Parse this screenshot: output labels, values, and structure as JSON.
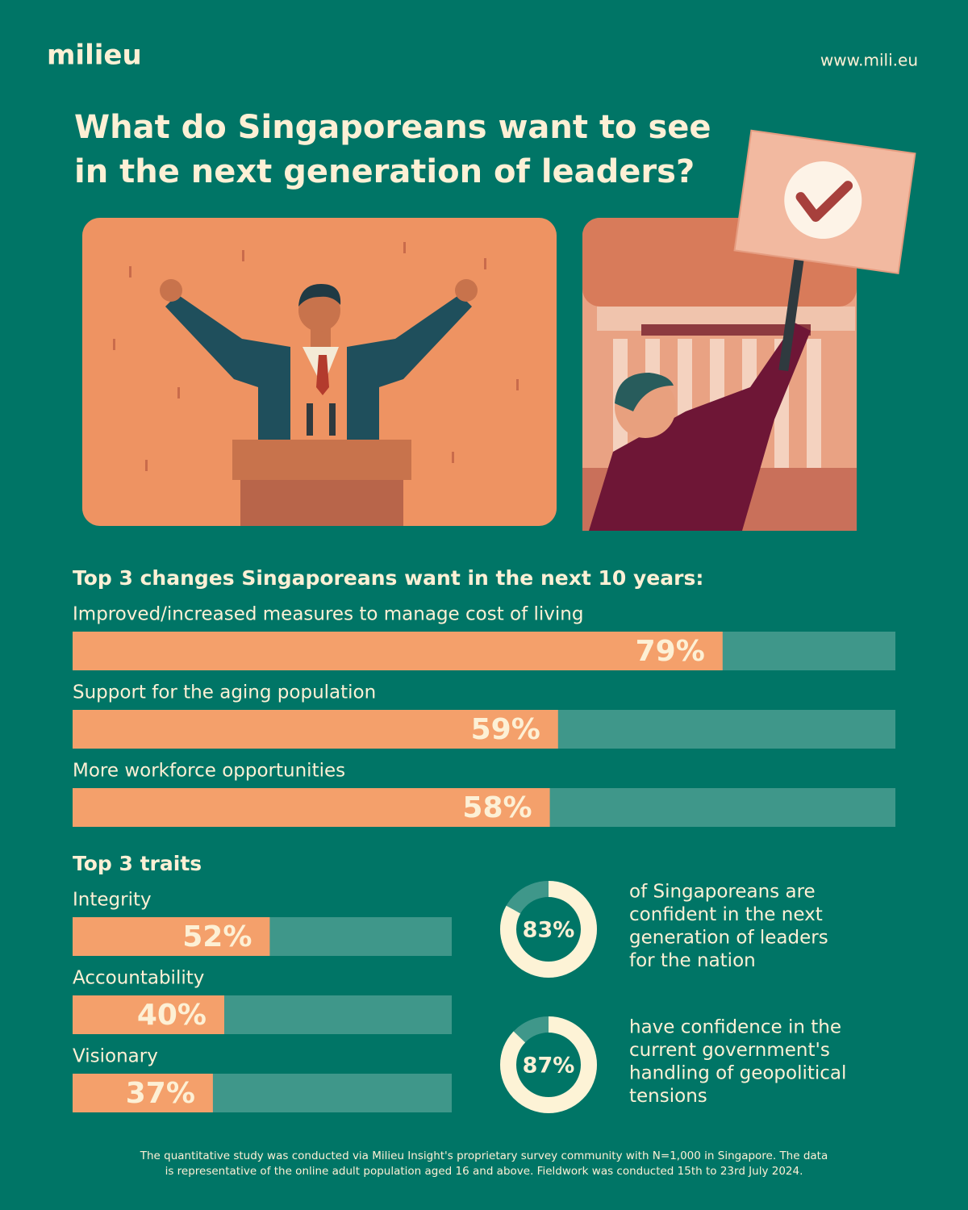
{
  "header": {
    "logo": "milieu",
    "url": "www.mili.eu"
  },
  "title": [
    "What do Singaporeans want to see",
    "in the next generation of leaders?"
  ],
  "chart_data": [
    {
      "type": "bar",
      "title": "Top 3 changes Singaporeans want in the next 10 years:",
      "categories": [
        "Improved/increased measures to manage cost of living",
        "Support for the aging population",
        "More workforce opportunities"
      ],
      "values": [
        79,
        59,
        58
      ],
      "value_labels": [
        "79%",
        "59%",
        "58%"
      ],
      "xlim": [
        0,
        100
      ],
      "color": "#f4a06b",
      "track_color": "#3f978a"
    },
    {
      "type": "bar",
      "title": "Top 3 traits",
      "categories": [
        "Integrity",
        "Accountability",
        "Visionary"
      ],
      "values": [
        52,
        40,
        37
      ],
      "value_labels": [
        "52%",
        "40%",
        "37%"
      ],
      "xlim": [
        0,
        100
      ],
      "color": "#f4a06b",
      "track_color": "#3f978a"
    },
    {
      "type": "donut",
      "values": [
        83
      ],
      "value_labels": [
        "83%"
      ],
      "total": 100,
      "caption": [
        "of Singaporeans are",
        "confident in the next",
        "generation of leaders",
        "for the nation"
      ],
      "color": "#fdf3d6",
      "track_color": "#3f978a"
    },
    {
      "type": "donut",
      "values": [
        87
      ],
      "value_labels": [
        "87%"
      ],
      "total": 100,
      "caption": [
        "have confidence in the",
        "current government's",
        "handling of geopolitical",
        "tensions"
      ],
      "color": "#fdf3d6",
      "track_color": "#3f978a"
    }
  ],
  "footnote": [
    "The quantitative study was conducted via Milieu Insight's proprietary survey community with N=1,000 in Singapore. The data",
    "is representative of the online adult population aged 16 and above. Fieldwork was conducted 15th to 23rd July 2024."
  ]
}
